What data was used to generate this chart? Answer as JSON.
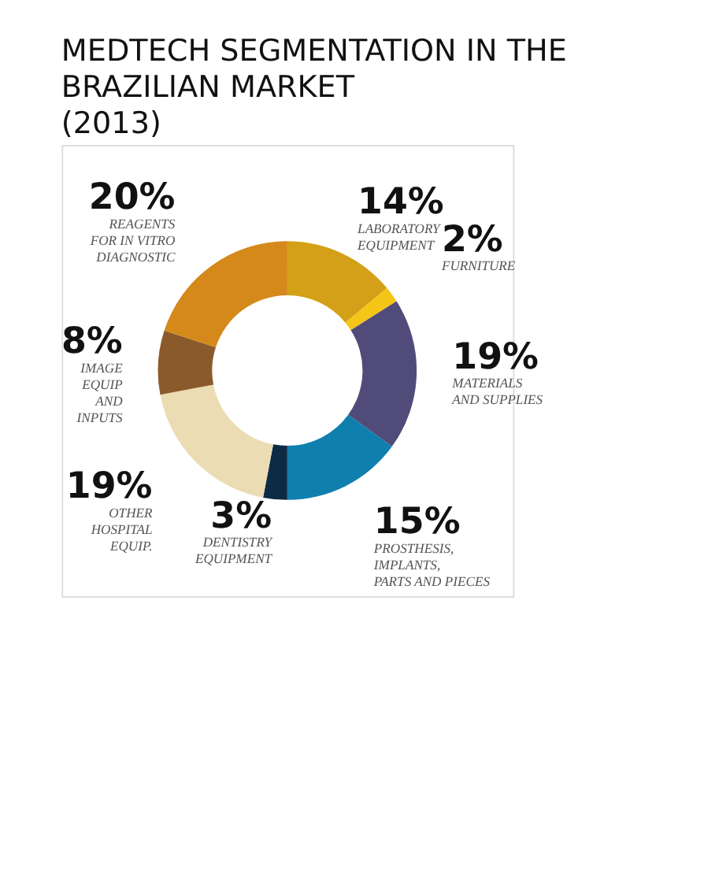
{
  "chart_data": {
    "type": "donut",
    "title": "MEDTECH SEGMENTATION IN THE\nBRAZILIAN MARKET\n(2013)",
    "categories": [
      "LABORATORY\nEQUIPMENT",
      "FURNITURE",
      "MATERIALS\nAND SUPPLIES",
      "PROSTHESIS,\nIMPLANTS,\nPARTS AND PIECES",
      "DENTISTRY\nEQUIPMENT",
      "OTHER\nHOSPITAL\nEQUIP.",
      "IMAGE\nEQUIP\nAND\nINPUTS",
      "REAGENTS\nFOR IN VITRO\nDIAGNOSTIC"
    ],
    "values": [
      14,
      2,
      19,
      15,
      3,
      19,
      8,
      20
    ],
    "colors": [
      "#d4a017",
      "#f5c518",
      "#514b7a",
      "#0f7fae",
      "#0d2b45",
      "#ecdcb3",
      "#8b5a2b",
      "#d4891a"
    ],
    "value_labels": [
      "14%",
      "2%",
      "19%",
      "15%",
      "3%",
      "19%",
      "8%",
      "20%"
    ]
  }
}
